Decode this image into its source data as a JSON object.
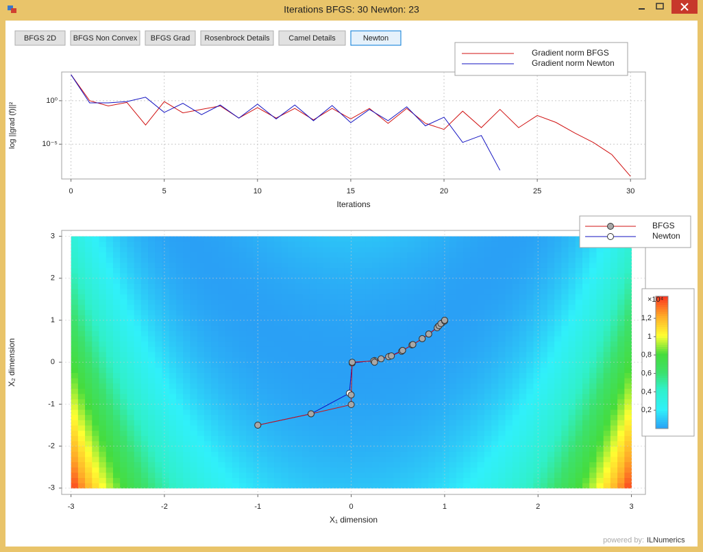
{
  "window": {
    "title": "Iterations BFGS: 30 Newton: 23"
  },
  "buttons": [
    "BFGS 2D",
    "BFGS Non Convex",
    "BFGS Grad",
    "Rosenbrock Details",
    "Camel Details",
    "Newton"
  ],
  "footer": {
    "prefix": "powered by:",
    "brand": "ILNumerics"
  },
  "chart_data": [
    {
      "type": "line",
      "yscale": "log",
      "xlabel": "Iterations",
      "ylabel": "log ||grad (f)||²",
      "x": [
        0,
        1,
        2,
        3,
        4,
        5,
        6,
        7,
        8,
        9,
        10,
        11,
        12,
        13,
        14,
        15,
        16,
        17,
        18,
        19,
        20,
        21,
        22,
        23,
        24,
        25,
        26,
        27,
        28,
        29,
        30
      ],
      "series": [
        {
          "name": "Gradient norm BFGS",
          "color": "#d01010",
          "values": [
            1000,
            1,
            0.25,
            0.63,
            0.0016,
            0.79,
            0.04,
            0.1,
            0.25,
            0.01,
            0.16,
            0.01,
            0.13,
            0.0063,
            0.13,
            0.008,
            0.13,
            0.0025,
            0.13,
            0.0025,
            0.0005,
            0.063,
            0.0008,
            0.1,
            0.0008,
            0.02,
            0.0032,
            0.0002,
            1.6e-05,
            6.3e-07,
            2e-09
          ]
        },
        {
          "name": "Gradient norm Newton",
          "color": "#1010c0",
          "values": [
            1000,
            0.56,
            0.56,
            0.8,
            2.5,
            0.045,
            0.5,
            0.025,
            0.32,
            0.01,
            0.4,
            0.008,
            0.32,
            0.005,
            0.28,
            0.003,
            0.1,
            0.005,
            0.2,
            0.0013,
            0.0126,
            1.6e-05,
            0.0001,
            1e-08,
            null,
            null,
            null,
            null,
            null,
            null,
            null
          ]
        }
      ],
      "xlim": [
        -0.5,
        30.8
      ],
      "xticks": [
        0,
        5,
        10,
        15,
        20,
        25,
        30
      ],
      "ylim": [
        1e-09,
        2000
      ],
      "yticks": [
        {
          "value": 1,
          "label": "10⁰"
        },
        {
          "value": 1e-05,
          "label": "10⁻⁵"
        }
      ],
      "grid": true,
      "legend": "top right"
    },
    {
      "type": "line",
      "markers": true,
      "xlabel": "X₁ dimension",
      "ylabel": "X₂ dimension",
      "series": [
        {
          "name": "Newton",
          "color": "#1010c0",
          "marker_fill": "#ffffff",
          "x": [
            -1,
            -0.43,
            -0.02,
            0.01,
            0.25,
            0.41,
            0.55,
            0.66,
            0.76,
            0.83,
            0.93,
            0.97,
            1
          ],
          "values": [
            -1.5,
            -1.23,
            -0.74,
            -0.02,
            0.04,
            0.14,
            0.28,
            0.42,
            0.56,
            0.67,
            0.85,
            0.93,
            1
          ]
        },
        {
          "name": "BFGS",
          "color": "#d01010",
          "marker_fill": "#a8a8a8",
          "x": [
            -1,
            -0.43,
            0,
            0,
            0.01,
            0.24,
            0.25,
            0.32,
            0.4,
            0.43,
            0.54,
            0.55,
            0.65,
            0.66,
            0.76,
            0.83,
            0.92,
            0.94,
            0.96,
            1,
            1
          ],
          "values": [
            -1.5,
            -1.23,
            -1.01,
            -0.78,
            0,
            0.03,
            0,
            0.08,
            0.13,
            0.15,
            0.26,
            0.28,
            0.41,
            0.42,
            0.56,
            0.67,
            0.82,
            0.87,
            0.92,
            0.98,
            1
          ]
        }
      ],
      "xlim": [
        -3.1,
        3.15
      ],
      "xticks": [
        -3,
        -2,
        -1,
        0,
        1,
        2,
        3
      ],
      "ylim": [
        -3.15,
        3.14
      ],
      "yticks": [
        -3,
        -2,
        -1,
        0,
        1,
        2,
        3
      ],
      "grid": true,
      "legend": "top right",
      "colorbar": {
        "label": "×10⁴",
        "lim": [
          0,
          1.44
        ],
        "ticks": [
          {
            "value": 0.2,
            "label": "0,2"
          },
          {
            "value": 0.4,
            "label": "0,4"
          },
          {
            "value": 0.6,
            "label": "0,6"
          },
          {
            "value": 0.8,
            "label": "0,8"
          },
          1,
          {
            "value": 1.2,
            "label": "1,2"
          }
        ]
      }
    }
  ]
}
